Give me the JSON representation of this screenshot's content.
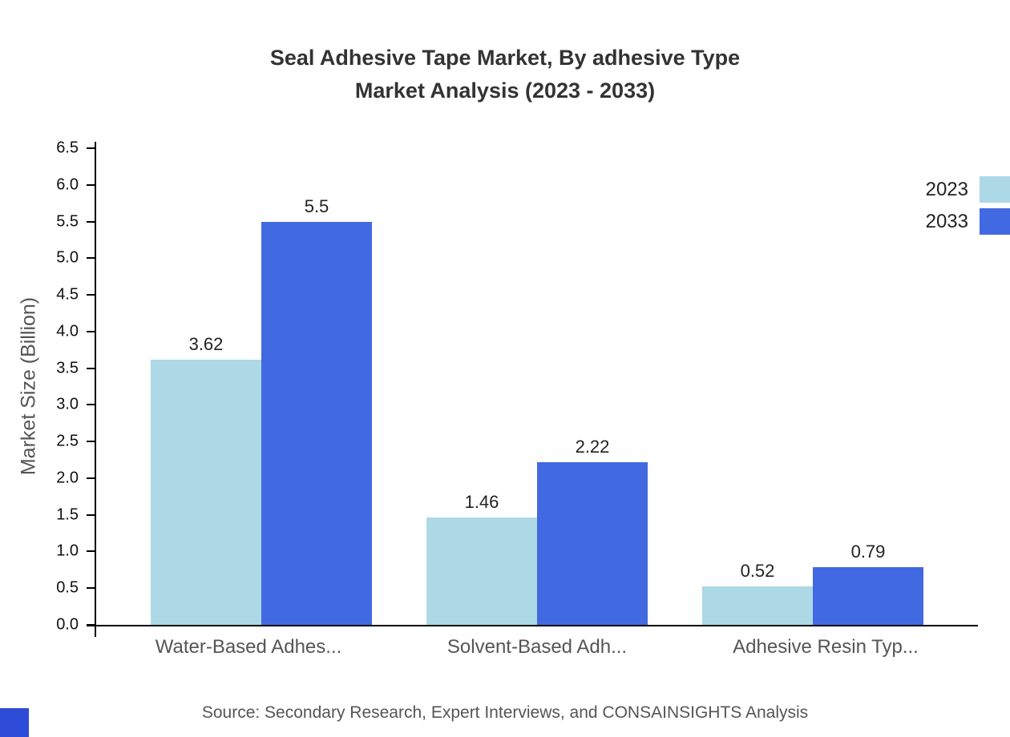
{
  "header": {
    "title_line1": "Seal Adhesive Tape Market, By adhesive Type",
    "title_line2": "Market Analysis (2023 - 2033)"
  },
  "chart_data": {
    "type": "bar",
    "title": "Seal Adhesive Tape Market, By adhesive Type Market Analysis (2023 - 2033)",
    "categories": [
      "Water-Based Adhes...",
      "Solvent-Based Adh...",
      "Adhesive Resin Typ..."
    ],
    "series": [
      {
        "name": "2023",
        "color": "#add8e6",
        "values": [
          3.62,
          1.46,
          0.52
        ]
      },
      {
        "name": "2033",
        "color": "#4169e1",
        "values": [
          5.5,
          2.22,
          0.79
        ]
      }
    ],
    "xlabel": "",
    "ylabel": "Market Size (Billion)",
    "ylim": [
      0,
      6.5
    ],
    "ytick_step": 0.5,
    "grid": false,
    "legend_position": "top-right"
  },
  "footer": {
    "source": "Source: Secondary Research, Expert Interviews, and CONSAINSIGHTS Analysis",
    "brand_color": "#2f4cd9"
  }
}
